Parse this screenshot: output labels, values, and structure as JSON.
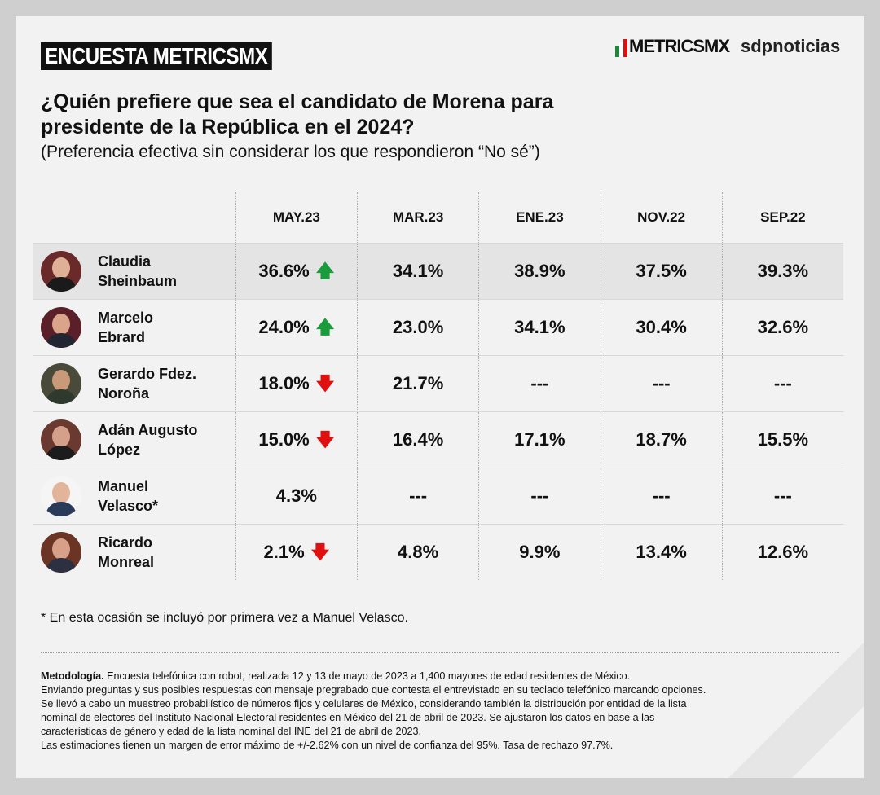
{
  "header": {
    "banner": "ENCUESTA METRICSMX",
    "logo_metrics": "METRICSMX",
    "logo_sdp": "sdpnoticias",
    "title_line1": "¿Quién prefiere que sea el candidato de Morena para",
    "title_line2": "presidente de la República en el 2024?",
    "subtitle": "(Preferencia efectiva sin considerar los que respondieron “No sé”)"
  },
  "colors": {
    "up": "#1a9b3c",
    "down": "#e01010",
    "highlight_row": "#e4e4e4"
  },
  "chart_data": {
    "type": "table",
    "columns": [
      "MAY.23",
      "MAR.23",
      "ENE.23",
      "NOV.22",
      "SEP.22"
    ],
    "rows": [
      {
        "name1": "Claudia",
        "name2": "Sheinbaum",
        "values": [
          "36.6%",
          "34.1%",
          "38.9%",
          "37.5%",
          "39.3%"
        ],
        "trend": "up"
      },
      {
        "name1": "Marcelo",
        "name2": "Ebrard",
        "values": [
          "24.0%",
          "23.0%",
          "34.1%",
          "30.4%",
          "32.6%"
        ],
        "trend": "up"
      },
      {
        "name1": "Gerardo Fdez.",
        "name2": "Noroña",
        "values": [
          "18.0%",
          "21.7%",
          "---",
          "---",
          "---"
        ],
        "trend": "down"
      },
      {
        "name1": "Adán Augusto",
        "name2": "López",
        "values": [
          "15.0%",
          "16.4%",
          "17.1%",
          "18.7%",
          "15.5%"
        ],
        "trend": "down"
      },
      {
        "name1": "Manuel",
        "name2": "Velasco*",
        "values": [
          "4.3%",
          "---",
          "---",
          "---",
          "---"
        ],
        "trend": ""
      },
      {
        "name1": "Ricardo",
        "name2": "Monreal",
        "values": [
          "2.1%",
          "4.8%",
          "9.9%",
          "13.4%",
          "12.6%"
        ],
        "trend": "down"
      }
    ]
  },
  "note": "* En esta ocasión se incluyó por primera vez a Manuel Velasco.",
  "methodology": {
    "label": "Metodología.",
    "lines": [
      "Encuesta telefónica con robot, realizada 12 y 13 de mayo de 2023 a 1,400 mayores de edad residentes de México.",
      "Enviando preguntas y sus posibles respuestas con mensaje pregrabado que contesta el entrevistado en su teclado telefónico marcando opciones.",
      "Se llevó a cabo un muestreo probabilístico de números fijos y celulares de México, considerando también la distribución por entidad de la lista",
      "nominal de electores del Instituto Nacional Electoral residentes en México del 21 de abril de 2023. Se ajustaron los datos en base a las",
      "características de género y edad de la lista nominal del INE del 21 de abril de 2023.",
      "Las estimaciones tienen un margen de error máximo de +/-2.62% con un nivel de confianza del 95%. Tasa de rechazo 97.7%."
    ]
  }
}
